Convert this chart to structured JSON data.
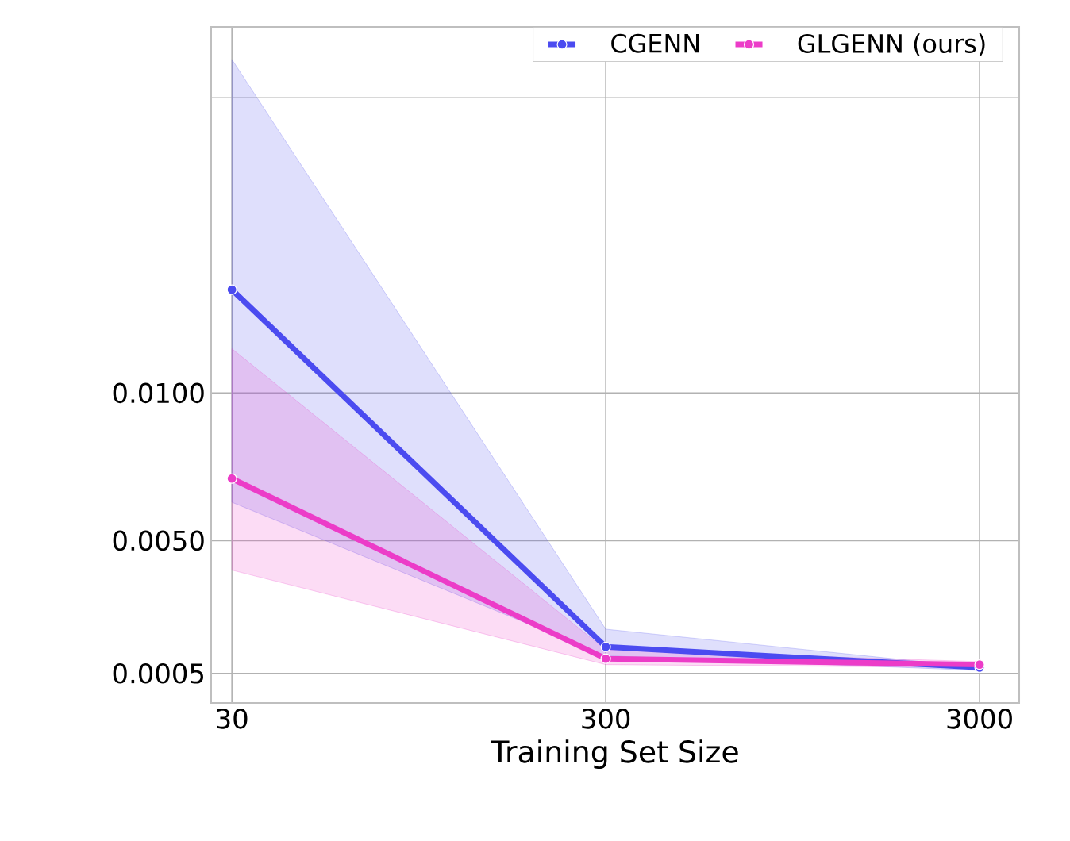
{
  "chart_data": {
    "type": "line",
    "xlabel": "Training Set Size",
    "x": [
      30,
      300,
      3000
    ],
    "log": "x",
    "xlim": [
      26.4,
      3830
    ],
    "xticks": [
      30,
      300,
      3000
    ],
    "ylim": [
      -0.0005,
      0.0224
    ],
    "yticks": [
      0.0005,
      {
        "value": 0.005,
        "label": "0.0050"
      },
      {
        "value": 0.01,
        "label": "0.0100"
      },
      {
        "value": 0.02,
        "label": null
      }
    ],
    "grid": true,
    "legend": "top right",
    "marker": "circle",
    "line_style": "solid",
    "series": [
      {
        "name": "CGENN",
        "color": "#4b4bf0",
        "values": [
          0.0135,
          0.0014,
          0.0007
        ],
        "lower": [
          0.0063,
          0.0011,
          0.0006
        ],
        "upper": [
          0.0213,
          0.002,
          0.0007
        ]
      },
      {
        "name": "GLGENN (ours)",
        "color": "#ec3cc8",
        "values": [
          0.0071,
          0.001,
          0.0008
        ],
        "lower": [
          0.004,
          0.0008,
          0.0007
        ],
        "upper": [
          0.0115,
          0.0013,
          0.0009
        ]
      }
    ]
  }
}
